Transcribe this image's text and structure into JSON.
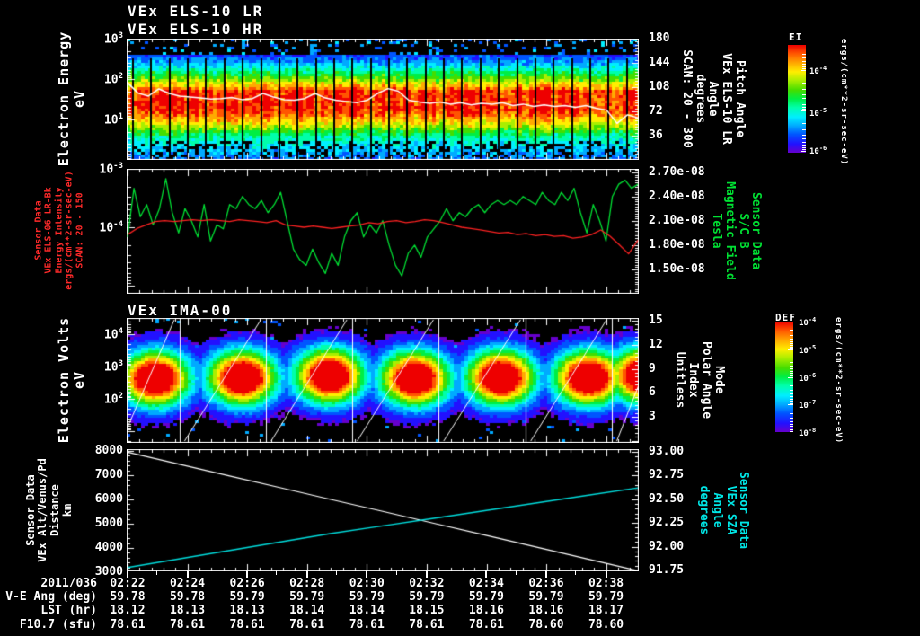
{
  "display": {
    "background": "#000000",
    "log_tick_base": "10"
  },
  "panels": {
    "els": {
      "titles": [
        "VEx ELS-10 LR",
        "VEx ELS-10 HR"
      ],
      "left_label_lines": [
        "Electron Energy",
        "eV"
      ],
      "left_tick_exponents": [
        3,
        2,
        1
      ],
      "right_label_lines": [
        "Pitch Angle",
        "VEx ELS-10 LR",
        "Angle",
        "degrees",
        "SCAN: 20 - 300"
      ],
      "right_ticks": [
        "180",
        "144",
        "108",
        "72",
        "36"
      ],
      "colorbar": {
        "title": "EI",
        "tick_exponents": [
          -4,
          -5,
          -6
        ],
        "units": "ergs/(cm**2-sr-sec-eV)"
      }
    },
    "intensity_bfield": {
      "left_label_lines": [
        "Sensor Data",
        "VEx ELS-06 LR-Bk",
        "Energy Intensity",
        "ergs/(cm**2-sr-sec-eV)",
        "SCAN: 20 - 150"
      ],
      "left_tick_exponents": [
        -3,
        -4
      ],
      "right_ticks": [
        "2.70e-08",
        "2.40e-08",
        "2.10e-08",
        "1.80e-08",
        "1.50e-08"
      ],
      "right_label_lines": [
        "Sensor Data",
        "S/C B",
        "Magnetic Field",
        "Tesla"
      ]
    },
    "ima": {
      "title": "VEx IMA-00",
      "left_label_lines": [
        "Electron Volts",
        "eV"
      ],
      "left_tick_exponents": [
        4,
        3,
        2
      ],
      "right_label_lines": [
        "Mode",
        "Polar Angle",
        "Index",
        "Unitless"
      ],
      "right_ticks": [
        "15",
        "12",
        "9",
        "6",
        "3"
      ],
      "colorbar": {
        "title": "DEF",
        "tick_exponents": [
          -4,
          -5,
          -6,
          -7,
          -8
        ],
        "units": "ergs/(cm**2-sr-sec-eV)"
      }
    },
    "alt_sza": {
      "left_label_lines": [
        "Sensor Data",
        "VEx Alt/Venus/Pd",
        "Distance",
        "km"
      ],
      "left_ticks": [
        "8000",
        "7000",
        "6000",
        "5000",
        "4000",
        "3000"
      ],
      "right_ticks": [
        "93.00",
        "92.75",
        "92.50",
        "92.25",
        "92.00",
        "91.75"
      ],
      "right_label_lines": [
        "Sensor Data",
        "VEx SZA",
        "Angle",
        "degrees"
      ]
    }
  },
  "bottom_table": {
    "date_label": "2011/036",
    "times": [
      "02:22",
      "02:24",
      "02:26",
      "02:28",
      "02:30",
      "02:32",
      "02:34",
      "02:36",
      "02:38"
    ],
    "rows": [
      {
        "label": "V-E Ang (deg)",
        "values": [
          "59.78",
          "59.78",
          "59.79",
          "59.79",
          "59.79",
          "59.79",
          "59.79",
          "59.79",
          "59.79"
        ]
      },
      {
        "label": "LST (hr)",
        "values": [
          "18.12",
          "18.13",
          "18.13",
          "18.14",
          "18.14",
          "18.15",
          "18.16",
          "18.16",
          "18.17"
        ]
      },
      {
        "label": "F10.7 (sfu)",
        "values": [
          "78.61",
          "78.61",
          "78.61",
          "78.61",
          "78.61",
          "78.61",
          "78.61",
          "78.60",
          "78.60"
        ]
      }
    ]
  },
  "palette": [
    "#000000",
    "#6600cc",
    "#2211ff",
    "#0055ff",
    "#00aaff",
    "#00eeff",
    "#00ffaa",
    "#00ee44",
    "#44dd00",
    "#aaee00",
    "#ffee00",
    "#ffaa00",
    "#ff5500",
    "#ee0000"
  ],
  "chart_data": [
    {
      "panel": "els",
      "type": "heatmap",
      "x_axis": {
        "start": "02:22",
        "end": "02:38",
        "tick_interval_min": 2
      },
      "y_axis": {
        "scale": "log",
        "unit": "eV",
        "min": 1,
        "max": 1000
      },
      "z_axis": {
        "unit": "ergs/(cm**2-sr-sec-eV)",
        "min": 1e-06,
        "max": 0.0001
      },
      "right_axis": {
        "unit": "degrees",
        "min": 0,
        "max": 180
      },
      "segments": 28,
      "overlay_mean_energy_ev": [
        81,
        45,
        38,
        57,
        44,
        38,
        36,
        34,
        32,
        33,
        35,
        31,
        33,
        44,
        36,
        31,
        30,
        33,
        44,
        34,
        30,
        28,
        26,
        30,
        44,
        58,
        50,
        30,
        27,
        25,
        27,
        24,
        26,
        23,
        25,
        24,
        26,
        22,
        24,
        21,
        23,
        21,
        22,
        20,
        22,
        19,
        17,
        8,
        13,
        11
      ]
    },
    {
      "panel": "intensity_bfield",
      "type": "line",
      "left_axis": {
        "scale": "log",
        "min": 7e-06,
        "max": 0.001,
        "unit": "ergs/(cm**2-sr-sec-eV)"
      },
      "right_axis": {
        "scale": "linear",
        "min": 1.2e-08,
        "max": 2.74e-08,
        "unit": "Tesla"
      },
      "series": [
        {
          "name": "VEx ELS-06 LR-Bk Energy Intensity",
          "color": "#ff2222",
          "axis": "left",
          "values_1e4": [
            0.75,
            0.95,
            1.1,
            1.25,
            1.3,
            1.25,
            1.3,
            1.35,
            1.3,
            1.35,
            1.3,
            1.25,
            1.35,
            1.3,
            1.25,
            1.2,
            1.3,
            1.1,
            1.05,
            1.0,
            1.05,
            1.0,
            0.95,
            1.0,
            1.05,
            1.1,
            1.2,
            1.15,
            1.25,
            1.3,
            1.2,
            1.25,
            1.35,
            1.3,
            1.2,
            1.1,
            1.0,
            0.95,
            0.9,
            0.85,
            0.8,
            0.82,
            0.75,
            0.78,
            0.72,
            0.75,
            0.7,
            0.72,
            0.65,
            0.68,
            0.75,
            0.9,
            0.7,
            0.5,
            0.35,
            0.6
          ]
        },
        {
          "name": "S/C B Magnetic Field",
          "color": "#00e033",
          "axis": "right",
          "values_1e8": [
            1.9,
            2.5,
            2.15,
            2.3,
            2.05,
            2.25,
            2.62,
            2.2,
            1.95,
            2.25,
            2.1,
            1.9,
            2.3,
            1.85,
            2.05,
            2.0,
            2.3,
            2.25,
            2.4,
            2.3,
            2.25,
            2.35,
            2.2,
            2.3,
            2.45,
            2.1,
            1.75,
            1.62,
            1.55,
            1.75,
            1.58,
            1.45,
            1.7,
            1.55,
            1.9,
            2.1,
            2.2,
            1.9,
            2.05,
            1.95,
            2.1,
            1.8,
            1.55,
            1.42,
            1.7,
            1.8,
            1.65,
            1.9,
            2.0,
            2.1,
            2.25,
            2.1,
            2.2,
            2.15,
            2.25,
            2.3,
            2.2,
            2.3,
            2.35,
            2.3,
            2.35,
            2.3,
            2.4,
            2.35,
            2.3,
            2.45,
            2.35,
            2.3,
            2.45,
            2.35,
            2.5,
            2.2,
            1.95,
            2.3,
            2.1,
            1.85,
            2.4,
            2.55,
            2.6,
            2.5,
            2.55
          ]
        }
      ]
    },
    {
      "panel": "ima",
      "type": "heatmap",
      "y_axis": {
        "scale": "log",
        "unit": "eV",
        "min": 3.5,
        "max": 35000
      },
      "z_axis": {
        "unit": "ergs/(cm**2-sr-sec-eV)",
        "min": 1e-08,
        "max": 0.0001
      },
      "right_axis": {
        "unit": "index",
        "min": 0,
        "max": 15.5
      },
      "blob_centers": [
        [
          0.056,
          2.6
        ],
        [
          0.226,
          2.62
        ],
        [
          0.396,
          2.68
        ],
        [
          0.563,
          2.6
        ],
        [
          0.731,
          2.63
        ],
        [
          0.902,
          2.62
        ],
        [
          1.01,
          2.7
        ]
      ],
      "scan_boundaries_frac": [
        0.103,
        0.272,
        0.44,
        0.609,
        0.779,
        0.947
      ]
    },
    {
      "panel": "alt_sza",
      "type": "line",
      "left_axis": {
        "scale": "linear",
        "min": 3000,
        "max": 8000,
        "unit": "km"
      },
      "right_axis": {
        "scale": "linear",
        "min": 91.75,
        "max": 93.0,
        "unit": "degrees"
      },
      "series": [
        {
          "name": "VEx Alt/Venus/Pd Distance",
          "color": "#ffffff",
          "axis": "left",
          "values_km": [
            7950,
            7460,
            6970,
            6480,
            5990,
            5510,
            5020,
            4530,
            4040,
            3550,
            3060
          ]
        },
        {
          "name": "VEx SZA Angle",
          "color": "#00dddd",
          "axis": "right",
          "values_deg": [
            91.78,
            91.87,
            91.96,
            92.05,
            92.14,
            92.22,
            92.3,
            92.38,
            92.46,
            92.54,
            92.62
          ]
        }
      ]
    }
  ]
}
